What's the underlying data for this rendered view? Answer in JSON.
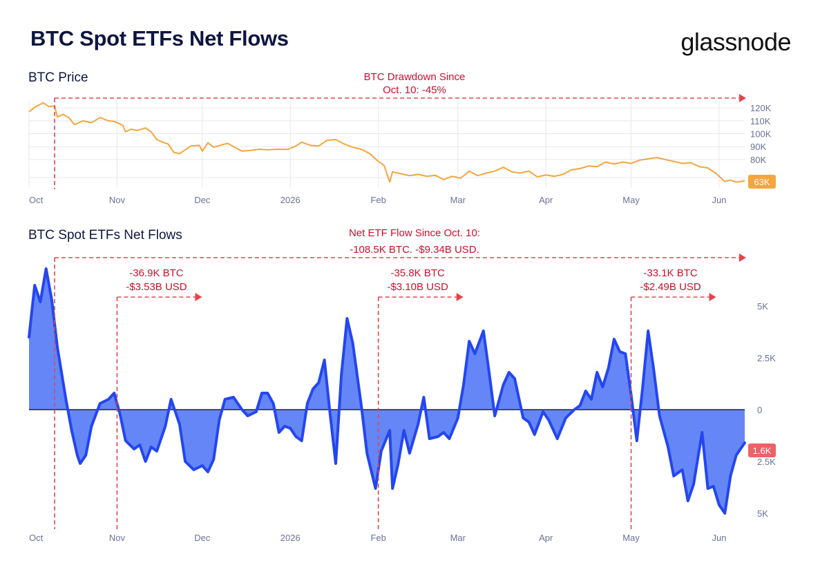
{
  "header": {
    "title": "BTC Spot ETFs Net Flows",
    "brand": "glassnode"
  },
  "colors": {
    "title": "#0d1540",
    "price_line": "#f5a53c",
    "flow_line": "#2446f0",
    "flow_fill": "#5d80f5",
    "annotation": "#e8434d",
    "annotation_text": "#c8102e",
    "axis_text": "#6b7194",
    "grid": "#e8e8ec"
  },
  "chart_data": [
    {
      "type": "line",
      "title": "BTC Price",
      "x_ticks": [
        "Oct",
        "Nov",
        "Dec",
        "2026",
        "Feb",
        "Mar",
        "Apr",
        "May",
        "Jun"
      ],
      "y_ticks": [
        "120K",
        "110K",
        "100K",
        "90K",
        "80K"
      ],
      "ylim": [
        58000,
        126000
      ],
      "x_range": [
        "2025-10-01",
        "2026-06-10"
      ],
      "last_value_label": "63K",
      "series": [
        {
          "values": [
            [
              "2025-10-01",
              117000
            ],
            [
              "2025-10-03",
              120500
            ],
            [
              "2025-10-06",
              124000
            ],
            [
              "2025-10-08",
              121000
            ],
            [
              "2025-10-10",
              121500
            ],
            [
              "2025-10-11",
              113000
            ],
            [
              "2025-10-13",
              115000
            ],
            [
              "2025-10-15",
              112500
            ],
            [
              "2025-10-17",
              107000
            ],
            [
              "2025-10-20",
              110000
            ],
            [
              "2025-10-23",
              108500
            ],
            [
              "2025-10-26",
              112500
            ],
            [
              "2025-10-29",
              110000
            ],
            [
              "2025-10-31",
              109500
            ],
            [
              "2025-11-03",
              106500
            ],
            [
              "2025-11-04",
              101500
            ],
            [
              "2025-11-06",
              103500
            ],
            [
              "2025-11-08",
              102500
            ],
            [
              "2025-11-11",
              104500
            ],
            [
              "2025-11-13",
              101500
            ],
            [
              "2025-11-15",
              95500
            ],
            [
              "2025-11-17",
              93500
            ],
            [
              "2025-11-19",
              92000
            ],
            [
              "2025-11-21",
              85500
            ],
            [
              "2025-11-23",
              84500
            ],
            [
              "2025-11-25",
              87500
            ],
            [
              "2025-11-27",
              90500
            ],
            [
              "2025-11-30",
              91000
            ],
            [
              "2025-12-01",
              86500
            ],
            [
              "2025-12-03",
              93000
            ],
            [
              "2025-12-05",
              89500
            ],
            [
              "2025-12-08",
              91500
            ],
            [
              "2025-12-10",
              92500
            ],
            [
              "2025-12-12",
              90000
            ],
            [
              "2025-12-15",
              86500
            ],
            [
              "2025-12-18",
              87000
            ],
            [
              "2025-12-21",
              88000
            ],
            [
              "2025-12-24",
              87500
            ],
            [
              "2025-12-28",
              88000
            ],
            [
              "2025-12-31",
              87800
            ],
            [
              "2026-01-03",
              90500
            ],
            [
              "2026-01-05",
              93500
            ],
            [
              "2026-01-08",
              91000
            ],
            [
              "2026-01-11",
              90500
            ],
            [
              "2026-01-14",
              95000
            ],
            [
              "2026-01-17",
              95500
            ],
            [
              "2026-01-20",
              92000
            ],
            [
              "2026-01-23",
              89500
            ],
            [
              "2026-01-26",
              88000
            ],
            [
              "2026-01-29",
              84500
            ],
            [
              "2026-02-01",
              78500
            ],
            [
              "2026-02-03",
              75500
            ],
            [
              "2026-02-05",
              62500
            ],
            [
              "2026-02-06",
              70500
            ],
            [
              "2026-02-09",
              69000
            ],
            [
              "2026-02-12",
              67500
            ],
            [
              "2026-02-15",
              68500
            ],
            [
              "2026-02-18",
              67000
            ],
            [
              "2026-02-21",
              67800
            ],
            [
              "2026-02-24",
              64500
            ],
            [
              "2026-02-27",
              67000
            ],
            [
              "2026-03-02",
              65500
            ],
            [
              "2026-03-05",
              71000
            ],
            [
              "2026-03-08",
              67500
            ],
            [
              "2026-03-11",
              69500
            ],
            [
              "2026-03-14",
              71000
            ],
            [
              "2026-03-17",
              74000
            ],
            [
              "2026-03-20",
              70500
            ],
            [
              "2026-03-23",
              69500
            ],
            [
              "2026-03-26",
              71000
            ],
            [
              "2026-03-29",
              66500
            ],
            [
              "2026-04-01",
              68000
            ],
            [
              "2026-04-04",
              67000
            ],
            [
              "2026-04-07",
              68500
            ],
            [
              "2026-04-10",
              72000
            ],
            [
              "2026-04-13",
              73000
            ],
            [
              "2026-04-16",
              75000
            ],
            [
              "2026-04-19",
              74500
            ],
            [
              "2026-04-22",
              78000
            ],
            [
              "2026-04-25",
              76500
            ],
            [
              "2026-04-28",
              78000
            ],
            [
              "2026-05-01",
              77000
            ],
            [
              "2026-05-04",
              79500
            ],
            [
              "2026-05-07",
              80500
            ],
            [
              "2026-05-10",
              81500
            ],
            [
              "2026-05-13",
              80000
            ],
            [
              "2026-05-16",
              78500
            ],
            [
              "2026-05-19",
              77000
            ],
            [
              "2026-05-22",
              77500
            ],
            [
              "2026-05-25",
              74500
            ],
            [
              "2026-05-28",
              73500
            ],
            [
              "2026-05-31",
              69000
            ],
            [
              "2026-06-03",
              63000
            ],
            [
              "2026-06-05",
              64000
            ],
            [
              "2026-06-07",
              62500
            ],
            [
              "2026-06-10",
              63500
            ]
          ]
        }
      ]
    },
    {
      "type": "area",
      "title": "BTC Spot ETFs Net Flows",
      "x_ticks": [
        "Oct",
        "Nov",
        "Dec",
        "2026",
        "Feb",
        "Mar",
        "Apr",
        "May",
        "Jun"
      ],
      "y_ticks": [
        "5K",
        "2.5K",
        "0",
        "2.5K",
        "5K"
      ],
      "ylim": [
        -5800,
        7000
      ],
      "x_range": [
        "2025-10-01",
        "2026-06-10"
      ],
      "last_value_label": "1.6K",
      "series": [
        {
          "values": [
            [
              "2025-10-01",
              3500
            ],
            [
              "2025-10-03",
              6000
            ],
            [
              "2025-10-05",
              5200
            ],
            [
              "2025-10-07",
              6800
            ],
            [
              "2025-10-09",
              5300
            ],
            [
              "2025-10-11",
              3000
            ],
            [
              "2025-10-14",
              500
            ],
            [
              "2025-10-16",
              -1000
            ],
            [
              "2025-10-18",
              -2200
            ],
            [
              "2025-10-19",
              -2600
            ],
            [
              "2025-10-21",
              -2200
            ],
            [
              "2025-10-23",
              -800
            ],
            [
              "2025-10-26",
              300
            ],
            [
              "2025-10-29",
              500
            ],
            [
              "2025-10-31",
              800
            ],
            [
              "2025-11-02",
              -200
            ],
            [
              "2025-11-04",
              -1500
            ],
            [
              "2025-11-07",
              -1900
            ],
            [
              "2025-11-09",
              -1700
            ],
            [
              "2025-11-11",
              -2500
            ],
            [
              "2025-11-13",
              -1800
            ],
            [
              "2025-11-15",
              -2000
            ],
            [
              "2025-11-18",
              -800
            ],
            [
              "2025-11-20",
              500
            ],
            [
              "2025-11-23",
              -700
            ],
            [
              "2025-11-25",
              -2500
            ],
            [
              "2025-11-28",
              -2900
            ],
            [
              "2025-12-01",
              -2700
            ],
            [
              "2025-12-03",
              -3000
            ],
            [
              "2025-12-05",
              -2400
            ],
            [
              "2025-12-07",
              -500
            ],
            [
              "2025-12-09",
              500
            ],
            [
              "2025-12-12",
              600
            ],
            [
              "2025-12-15",
              0
            ],
            [
              "2025-12-17",
              -300
            ],
            [
              "2025-12-20",
              -100
            ],
            [
              "2025-12-22",
              800
            ],
            [
              "2025-12-24",
              800
            ],
            [
              "2025-12-26",
              300
            ],
            [
              "2025-12-28",
              -1100
            ],
            [
              "2025-12-30",
              -800
            ],
            [
              "2026-01-01",
              -900
            ],
            [
              "2026-01-03",
              -1300
            ],
            [
              "2026-01-05",
              -1500
            ],
            [
              "2026-01-07",
              300
            ],
            [
              "2026-01-09",
              1000
            ],
            [
              "2026-01-11",
              1300
            ],
            [
              "2026-01-13",
              2400
            ],
            [
              "2026-01-15",
              -200
            ],
            [
              "2026-01-17",
              -2600
            ],
            [
              "2026-01-19",
              1700
            ],
            [
              "2026-01-21",
              4400
            ],
            [
              "2026-01-23",
              3200
            ],
            [
              "2026-01-26",
              200
            ],
            [
              "2026-01-28",
              -2100
            ],
            [
              "2026-01-31",
              -3800
            ],
            [
              "2026-02-02",
              -2000
            ],
            [
              "2026-02-05",
              -1000
            ],
            [
              "2026-02-06",
              -3800
            ],
            [
              "2026-02-08",
              -2600
            ],
            [
              "2026-02-10",
              -1000
            ],
            [
              "2026-02-12",
              -2100
            ],
            [
              "2026-02-15",
              -700
            ],
            [
              "2026-02-17",
              600
            ],
            [
              "2026-02-19",
              -1400
            ],
            [
              "2026-02-22",
              -1300
            ],
            [
              "2026-02-24",
              -1100
            ],
            [
              "2026-02-26",
              -1400
            ],
            [
              "2026-03-01",
              -400
            ],
            [
              "2026-03-03",
              1200
            ],
            [
              "2026-03-05",
              3300
            ],
            [
              "2026-03-07",
              2700
            ],
            [
              "2026-03-10",
              3800
            ],
            [
              "2026-03-12",
              1800
            ],
            [
              "2026-03-14",
              -300
            ],
            [
              "2026-03-17",
              1200
            ],
            [
              "2026-03-19",
              1800
            ],
            [
              "2026-03-21",
              1500
            ],
            [
              "2026-03-24",
              -400
            ],
            [
              "2026-03-26",
              -600
            ],
            [
              "2026-03-28",
              -1200
            ],
            [
              "2026-03-31",
              -100
            ],
            [
              "2026-04-02",
              -500
            ],
            [
              "2026-04-05",
              -1400
            ],
            [
              "2026-04-08",
              -400
            ],
            [
              "2026-04-11",
              0
            ],
            [
              "2026-04-13",
              200
            ],
            [
              "2026-04-15",
              900
            ],
            [
              "2026-04-17",
              500
            ],
            [
              "2026-04-19",
              1800
            ],
            [
              "2026-04-21",
              1100
            ],
            [
              "2026-04-23",
              2000
            ],
            [
              "2026-04-25",
              3400
            ],
            [
              "2026-04-27",
              2800
            ],
            [
              "2026-04-29",
              2700
            ],
            [
              "2026-05-01",
              700
            ],
            [
              "2026-05-03",
              -1500
            ],
            [
              "2026-05-05",
              1000
            ],
            [
              "2026-05-07",
              3800
            ],
            [
              "2026-05-09",
              1900
            ],
            [
              "2026-05-11",
              -300
            ],
            [
              "2026-05-14",
              -1800
            ],
            [
              "2026-05-16",
              -3200
            ],
            [
              "2026-05-19",
              -2900
            ],
            [
              "2026-05-21",
              -4400
            ],
            [
              "2026-05-23",
              -3600
            ],
            [
              "2026-05-26",
              -1100
            ],
            [
              "2026-05-28",
              -3800
            ],
            [
              "2026-05-30",
              -3700
            ],
            [
              "2026-06-01",
              -4600
            ],
            [
              "2026-06-03",
              -5000
            ],
            [
              "2026-06-05",
              -3200
            ],
            [
              "2026-06-07",
              -2200
            ],
            [
              "2026-06-10",
              -1600
            ]
          ]
        }
      ]
    }
  ],
  "annotations": {
    "drawdown_line1": "BTC Drawdown Since",
    "drawdown_line2": "Oct. 10: -45%",
    "net_flow_line1": "Net ETF Flow Since Oct. 10:",
    "net_flow_line2": "-108.5K BTC. -$9.34B USD.",
    "period1_btc": "-36.9K BTC",
    "period1_usd": "-$3.53B USD",
    "period2_btc": "-35.8K BTC",
    "period2_usd": "-$3.10B USD",
    "period3_btc": "-33.1K BTC",
    "period3_usd": "-$2.49B USD"
  }
}
